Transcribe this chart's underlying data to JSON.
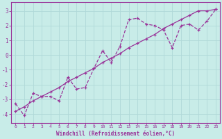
{
  "xlabel": "Windchill (Refroidissement éolien,°C)",
  "background_color": "#c8ece8",
  "line_color": "#993399",
  "grid_color": "#b0d8d8",
  "xlim": [
    -0.5,
    23.5
  ],
  "ylim": [
    -4.6,
    3.6
  ],
  "yticks": [
    -4,
    -3,
    -2,
    -1,
    0,
    1,
    2,
    3
  ],
  "xticks": [
    0,
    1,
    2,
    3,
    4,
    5,
    6,
    7,
    8,
    9,
    10,
    11,
    12,
    13,
    14,
    15,
    16,
    17,
    18,
    19,
    20,
    21,
    22,
    23
  ],
  "data_x": [
    0,
    1,
    2,
    3,
    4,
    5,
    6,
    7,
    8,
    9,
    10,
    11,
    12,
    13,
    14,
    15,
    16,
    17,
    18,
    19,
    20,
    21,
    22,
    23
  ],
  "data_y": [
    -3.3,
    -4.1,
    -2.6,
    -2.8,
    -2.8,
    -3.1,
    -1.5,
    -2.3,
    -2.2,
    -0.9,
    0.3,
    -0.5,
    0.6,
    2.4,
    2.5,
    2.1,
    2.0,
    1.7,
    0.5,
    2.0,
    2.1,
    1.7,
    2.3,
    3.1
  ],
  "trend_x": [
    0,
    1,
    2,
    3,
    4,
    5,
    6,
    7,
    8,
    9,
    10,
    11,
    12,
    13,
    14,
    15,
    16,
    17,
    18,
    19,
    20,
    21,
    22,
    23
  ],
  "trend_y": [
    -3.8,
    -3.5,
    -3.1,
    -2.8,
    -2.5,
    -2.2,
    -1.8,
    -1.5,
    -1.2,
    -0.9,
    -0.5,
    -0.2,
    0.1,
    0.5,
    0.8,
    1.1,
    1.4,
    1.8,
    2.1,
    2.4,
    2.7,
    3.0,
    3.0,
    3.1
  ]
}
